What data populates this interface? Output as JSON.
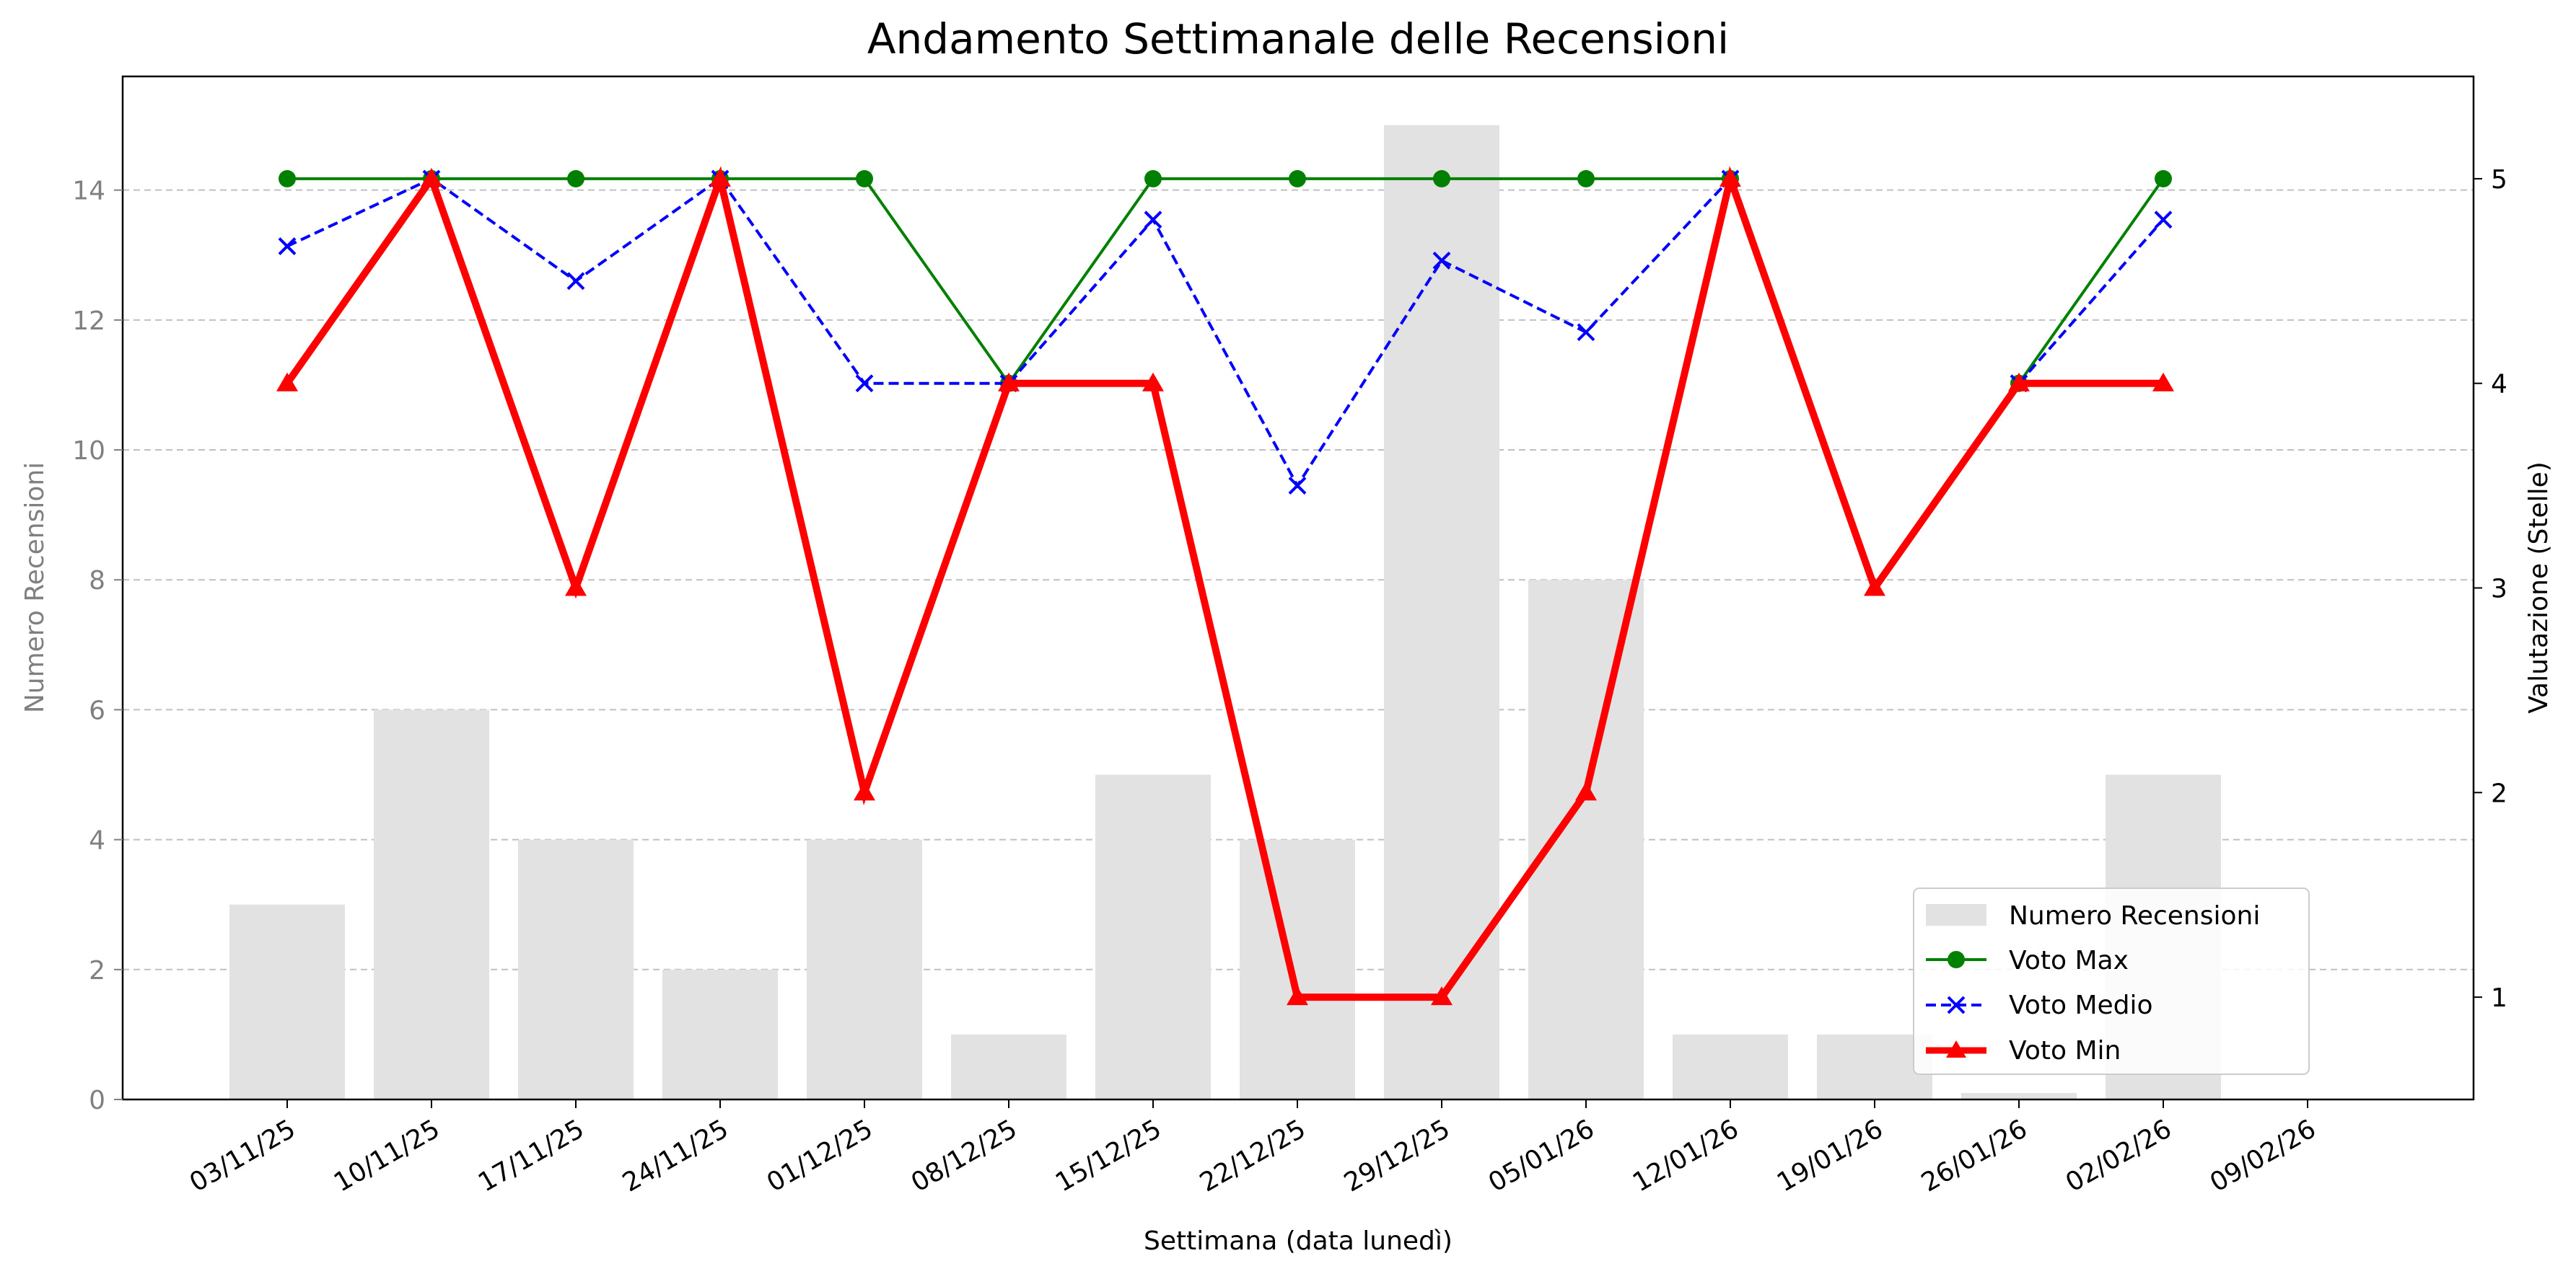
{
  "chart_data": {
    "type": "bar",
    "title": "Andamento Settimanale delle Recensioni",
    "xlabel": "Settimana (data lunedì)",
    "ylabel_left": "Numero Recensioni",
    "ylabel_right": "Valutazione (Stelle)",
    "categories": [
      "03/11/25",
      "10/11/25",
      "17/11/25",
      "24/11/25",
      "01/12/25",
      "08/12/25",
      "15/12/25",
      "22/12/25",
      "29/12/25",
      "05/01/26",
      "12/01/26",
      "19/01/26",
      "26/01/26",
      "02/02/26",
      "09/02/26"
    ],
    "ylim_left": [
      0,
      15.75
    ],
    "yticks_left": [
      0,
      2,
      4,
      6,
      8,
      10,
      12,
      14
    ],
    "ylim_right": [
      0.5,
      5.5
    ],
    "yticks_right": [
      1,
      2,
      3,
      4,
      5
    ],
    "grid": true,
    "legend_position": "lower right",
    "series": [
      {
        "name": "Numero Recensioni",
        "kind": "bar",
        "axis": "left",
        "color": "#e2e2e2",
        "values": [
          3,
          6,
          4,
          2,
          4,
          1,
          5,
          4,
          15,
          8,
          1,
          1,
          0.1,
          5,
          null
        ]
      },
      {
        "name": "Voto Max",
        "kind": "line",
        "axis": "right",
        "color": "#008000",
        "marker": "circle",
        "values": [
          5,
          5,
          5,
          5,
          5,
          4,
          5,
          5,
          5,
          5,
          5,
          null,
          4,
          5,
          null
        ]
      },
      {
        "name": "Voto Medio",
        "kind": "line",
        "axis": "right",
        "color": "#0000ff",
        "marker": "x",
        "dash": true,
        "values": [
          4.67,
          5,
          4.5,
          5,
          4,
          4,
          4.8,
          3.5,
          4.6,
          4.25,
          5,
          null,
          4,
          4.8,
          null
        ]
      },
      {
        "name": "Voto Min",
        "kind": "line",
        "axis": "right",
        "color": "#ff0000",
        "marker": "triangle",
        "values": [
          4,
          5,
          3,
          5,
          2,
          4,
          4,
          1,
          1,
          2,
          5,
          3,
          4,
          4,
          null
        ]
      }
    ]
  }
}
